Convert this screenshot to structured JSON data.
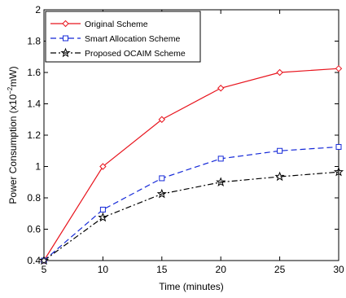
{
  "chart_data": {
    "type": "line",
    "title": "",
    "xlabel": "Time (minutes)",
    "ylabel_prefix": "Power Consumption (x10",
    "ylabel_exp": "−2",
    "ylabel_suffix": "mW)",
    "x": [
      5,
      10,
      15,
      20,
      25,
      30
    ],
    "xlim": [
      5,
      30
    ],
    "ylim": [
      0.4,
      2
    ],
    "xticks": [
      5,
      10,
      15,
      20,
      25,
      30
    ],
    "xtick_labels": [
      "5",
      "10",
      "15",
      "20",
      "25",
      "30"
    ],
    "yticks": [
      0.4,
      0.6,
      0.8,
      1.0,
      1.2,
      1.4,
      1.6,
      1.8,
      2.0
    ],
    "ytick_labels": [
      "0.4",
      "0.6",
      "0.8",
      "1",
      "1.2",
      "1.4",
      "1.6",
      "1.8",
      "2"
    ],
    "grid": false,
    "legend_position": "top-left",
    "series": [
      {
        "name": "Original Scheme",
        "values": [
          0.4,
          1.0,
          1.3,
          1.5,
          1.6,
          1.625
        ],
        "color": "#e8141d",
        "dash": "solid",
        "marker": "diamond"
      },
      {
        "name": "Smart Allocation Scheme",
        "values": [
          0.4,
          0.725,
          0.925,
          1.05,
          1.1,
          1.125
        ],
        "color": "#1428d8",
        "dash": "dashed",
        "marker": "square"
      },
      {
        "name": "Proposed OCAIM Scheme",
        "values": [
          0.4,
          0.675,
          0.825,
          0.9,
          0.935,
          0.965
        ],
        "color": "#000000",
        "dash": "dashdot",
        "marker": "star"
      }
    ]
  }
}
